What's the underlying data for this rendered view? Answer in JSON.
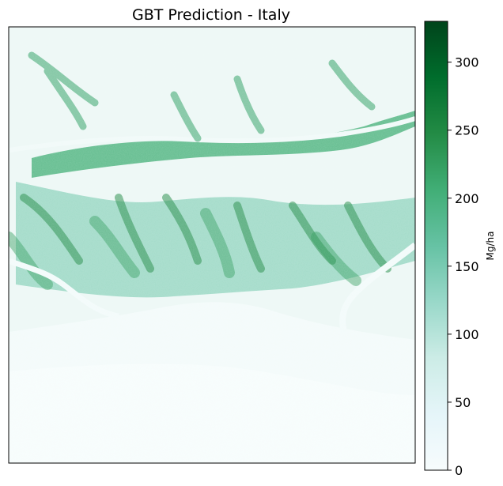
{
  "chart_data": {
    "type": "heatmap",
    "title": "GBT Prediction - Italy",
    "xlabel": "",
    "ylabel": "",
    "colorbar": {
      "label": "Mg/ha",
      "range": [
        0,
        330
      ],
      "ticks": [
        0,
        50,
        100,
        150,
        200,
        250,
        300
      ],
      "tick_labels": [
        "0",
        "50",
        "100",
        "150",
        "200",
        "250",
        "300"
      ],
      "colormap": "BuGn",
      "color_stops": [
        "#f7fcfd",
        "#e5f5f9",
        "#ccece6",
        "#99d8c9",
        "#66c2a4",
        "#41ae76",
        "#238b45",
        "#006d2c",
        "#00441b"
      ]
    },
    "axes_ticks_visible": false,
    "grid": false
  }
}
